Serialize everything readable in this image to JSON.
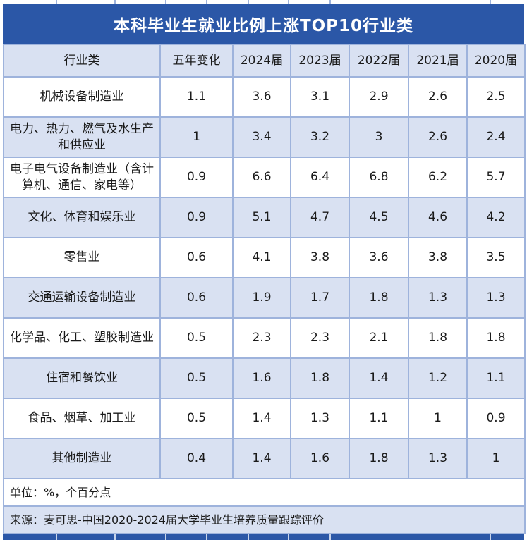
{
  "title": "本科毕业生就业比例上涨TOP10行业类",
  "table": {
    "columns": [
      "行业类",
      "五年变化",
      "2024届",
      "2023届",
      "2022届",
      "2021届",
      "2020届"
    ],
    "rows": [
      {
        "industry": "机械设备制造业",
        "values": [
          "1.1",
          "3.6",
          "3.1",
          "2.9",
          "2.6",
          "2.5"
        ]
      },
      {
        "industry": "电力、热力、燃气及水生产和供应业",
        "values": [
          "1",
          "3.4",
          "3.2",
          "3",
          "2.6",
          "2.4"
        ]
      },
      {
        "industry": "电子电气设备制造业（含计算机、通信、家电等）",
        "values": [
          "0.9",
          "6.6",
          "6.4",
          "6.8",
          "6.2",
          "5.7"
        ]
      },
      {
        "industry": "文化、体育和娱乐业",
        "values": [
          "0.9",
          "5.1",
          "4.7",
          "4.5",
          "4.6",
          "4.2"
        ]
      },
      {
        "industry": "零售业",
        "values": [
          "0.6",
          "4.1",
          "3.8",
          "3.6",
          "3.8",
          "3.5"
        ]
      },
      {
        "industry": "交通运输设备制造业",
        "values": [
          "0.6",
          "1.9",
          "1.7",
          "1.8",
          "1.3",
          "1.3"
        ]
      },
      {
        "industry": "化学品、化工、塑胶制造业",
        "values": [
          "0.5",
          "2.3",
          "2.3",
          "2.1",
          "1.8",
          "1.8"
        ]
      },
      {
        "industry": "住宿和餐饮业",
        "values": [
          "0.5",
          "1.6",
          "1.8",
          "1.4",
          "1.2",
          "1.1"
        ]
      },
      {
        "industry": "食品、烟草、加工业",
        "values": [
          "0.5",
          "1.4",
          "1.3",
          "1.1",
          "1",
          "0.9"
        ]
      },
      {
        "industry": "其他制造业",
        "values": [
          "0.4",
          "1.4",
          "1.6",
          "1.8",
          "1.3",
          "1"
        ]
      }
    ],
    "unit_note": "单位：%，个百分点",
    "source_note": "来源：麦可思-中国2020-2024届大学毕业生培养质量跟踪评价"
  },
  "colors": {
    "title_bar": "#2B57A7",
    "row_alt": "#D9E1F2",
    "row_white": "#FFFFFF",
    "border": "#9EB3DC",
    "title_text": "#FFFFFF",
    "body_text": "#1A1A1A"
  },
  "chart_data": {
    "type": "table",
    "title": "本科毕业生就业比例上涨TOP10行业类",
    "categories": [
      "五年变化",
      "2024届",
      "2023届",
      "2022届",
      "2021届",
      "2020届"
    ],
    "series": [
      {
        "name": "机械设备制造业",
        "values": [
          1.1,
          3.6,
          3.1,
          2.9,
          2.6,
          2.5
        ]
      },
      {
        "name": "电力、热力、燃气及水生产和供应业",
        "values": [
          1,
          3.4,
          3.2,
          3,
          2.6,
          2.4
        ]
      },
      {
        "name": "电子电气设备制造业（含计算机、通信、家电等）",
        "values": [
          0.9,
          6.6,
          6.4,
          6.8,
          6.2,
          5.7
        ]
      },
      {
        "name": "文化、体育和娱乐业",
        "values": [
          0.9,
          5.1,
          4.7,
          4.5,
          4.6,
          4.2
        ]
      },
      {
        "name": "零售业",
        "values": [
          0.6,
          4.1,
          3.8,
          3.6,
          3.8,
          3.5
        ]
      },
      {
        "name": "交通运输设备制造业",
        "values": [
          0.6,
          1.9,
          1.7,
          1.8,
          1.3,
          1.3
        ]
      },
      {
        "name": "化学品、化工、塑胶制造业",
        "values": [
          0.5,
          2.3,
          2.3,
          2.1,
          1.8,
          1.8
        ]
      },
      {
        "name": "住宿和餐饮业",
        "values": [
          0.5,
          1.6,
          1.8,
          1.4,
          1.2,
          1.1
        ]
      },
      {
        "name": "食品、烟草、加工业",
        "values": [
          0.5,
          1.4,
          1.3,
          1.1,
          1,
          0.9
        ]
      },
      {
        "name": "其他制造业",
        "values": [
          0.4,
          1.4,
          1.6,
          1.8,
          1.3,
          1
        ]
      }
    ],
    "unit": "%，个百分点",
    "source": "麦可思-中国2020-2024届大学毕业生培养质量跟踪评价"
  }
}
